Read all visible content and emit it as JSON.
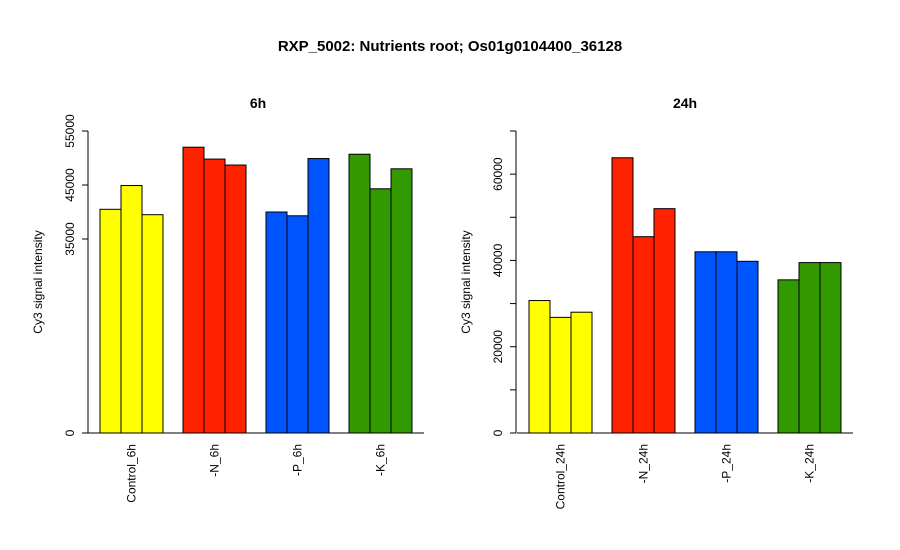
{
  "title": "RXP_5002: Nutrients root; Os01g0104400_36128",
  "chart_data": [
    {
      "type": "bar",
      "title": "6h",
      "ylabel": "Cy3 signal intensity",
      "categories": [
        "Control_6h",
        "-N_6h",
        "-P_6h",
        "-K_6h"
      ],
      "colors": [
        "#ffff00",
        "#ff2200",
        "#0055ff",
        "#339900"
      ],
      "values": [
        [
          40500,
          44900,
          39500
        ],
        [
          52000,
          49800,
          48700
        ],
        [
          40000,
          39300,
          49900
        ],
        [
          50700,
          44300,
          48000
        ]
      ],
      "yticks": [
        {
          "label": "0",
          "value": 0
        },
        {
          "label": "35000",
          "value": 35000
        },
        {
          "label": "45000",
          "value": 45000
        },
        {
          "label": "55000",
          "value": 55000
        }
      ],
      "ylim": [
        0,
        55000
      ]
    },
    {
      "type": "bar",
      "title": "24h",
      "ylabel": "Cy3 signal intensity",
      "categories": [
        "Control_24h",
        "-N_24h",
        "-P_24h",
        "-K_24h"
      ],
      "colors": [
        "#ffff00",
        "#ff2200",
        "#0055ff",
        "#339900"
      ],
      "values": [
        [
          30700,
          26800,
          28000
        ],
        [
          63800,
          45500,
          52000
        ],
        [
          42000,
          42000,
          39800
        ],
        [
          35500,
          39500,
          39500
        ]
      ],
      "yticks": [
        {
          "label": "0",
          "value": 0
        },
        {
          "label": "20000",
          "value": 20000
        },
        {
          "label": "40000",
          "value": 40000
        },
        {
          "label": "60000",
          "value": 60000
        }
      ],
      "ylim": [
        0,
        70000
      ]
    }
  ]
}
